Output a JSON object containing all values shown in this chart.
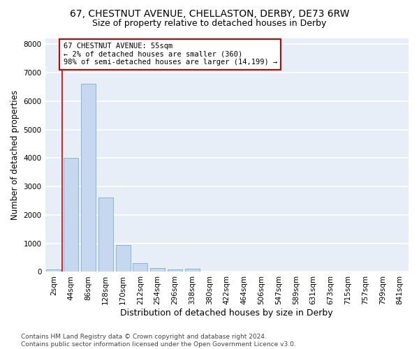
{
  "title1": "67, CHESTNUT AVENUE, CHELLASTON, DERBY, DE73 6RW",
  "title2": "Size of property relative to detached houses in Derby",
  "xlabel": "Distribution of detached houses by size in Derby",
  "ylabel": "Number of detached properties",
  "bar_values": [
    75,
    4000,
    6600,
    2600,
    950,
    310,
    130,
    80,
    100,
    0,
    0,
    0,
    0,
    0,
    0,
    0,
    0,
    0,
    0,
    0,
    0
  ],
  "bar_labels": [
    "2sqm",
    "44sqm",
    "86sqm",
    "128sqm",
    "170sqm",
    "212sqm",
    "254sqm",
    "296sqm",
    "338sqm",
    "380sqm",
    "422sqm",
    "464sqm",
    "506sqm",
    "547sqm",
    "589sqm",
    "631sqm",
    "673sqm",
    "715sqm",
    "757sqm",
    "799sqm",
    "841sqm"
  ],
  "bar_color": "#c5d8f0",
  "bar_edge_color": "#7aadd4",
  "background_color": "#e8eef8",
  "grid_color": "white",
  "vline_color": "#cc0000",
  "annotation_text": "67 CHESTNUT AVENUE: 55sqm\n← 2% of detached houses are smaller (360)\n98% of semi-detached houses are larger (14,199) →",
  "annotation_box_color": "white",
  "annotation_box_edge": "#cc0000",
  "ylim": [
    0,
    8200
  ],
  "yticks": [
    0,
    1000,
    2000,
    3000,
    4000,
    5000,
    6000,
    7000,
    8000
  ],
  "footer": "Contains HM Land Registry data © Crown copyright and database right 2024.\nContains public sector information licensed under the Open Government Licence v3.0.",
  "title1_fontsize": 10,
  "title2_fontsize": 9,
  "xlabel_fontsize": 9,
  "ylabel_fontsize": 8.5,
  "tick_fontsize": 7.5,
  "footer_fontsize": 6.5
}
